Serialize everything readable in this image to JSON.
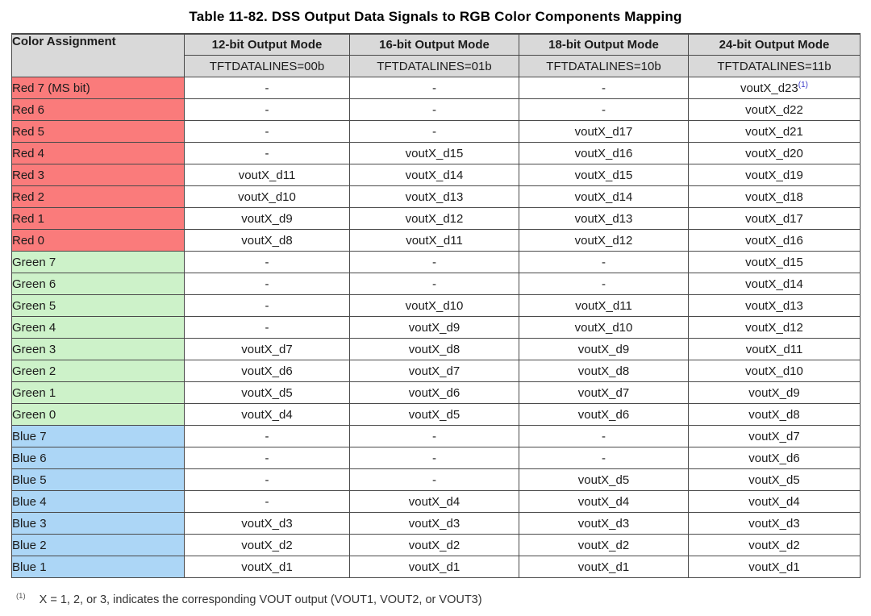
{
  "page": {
    "title": "Table 11-82. DSS Output Data Signals to RGB Color Components Mapping"
  },
  "table": {
    "header": {
      "color_assignment": "Color Assignment",
      "modes": [
        "12-bit Output Mode",
        "16-bit Output Mode",
        "18-bit Output Mode",
        "24-bit Output Mode"
      ],
      "subheaders": [
        "TFTDATALINES=00b",
        "TFTDATALINES=01b",
        "TFTDATALINES=10b",
        "TFTDATALINES=11b"
      ]
    },
    "rows": [
      {
        "color": "Red 7 (MS bit)",
        "group": "red",
        "values": [
          "-",
          "-",
          "-",
          "voutX_d23"
        ],
        "footnote_ref": "(1)"
      },
      {
        "color": "Red 6",
        "group": "red",
        "values": [
          "-",
          "-",
          "-",
          "voutX_d22"
        ]
      },
      {
        "color": "Red 5",
        "group": "red",
        "values": [
          "-",
          "-",
          "voutX_d17",
          "voutX_d21"
        ]
      },
      {
        "color": "Red 4",
        "group": "red",
        "values": [
          "-",
          "voutX_d15",
          "voutX_d16",
          "voutX_d20"
        ]
      },
      {
        "color": "Red 3",
        "group": "red",
        "values": [
          "voutX_d11",
          "voutX_d14",
          "voutX_d15",
          "voutX_d19"
        ]
      },
      {
        "color": "Red 2",
        "group": "red",
        "values": [
          "voutX_d10",
          "voutX_d13",
          "voutX_d14",
          "voutX_d18"
        ]
      },
      {
        "color": "Red 1",
        "group": "red",
        "values": [
          "voutX_d9",
          "voutX_d12",
          "voutX_d13",
          "voutX_d17"
        ]
      },
      {
        "color": "Red 0",
        "group": "red",
        "values": [
          "voutX_d8",
          "voutX_d11",
          "voutX_d12",
          "voutX_d16"
        ]
      },
      {
        "color": "Green 7",
        "group": "green",
        "values": [
          "-",
          "-",
          "-",
          "voutX_d15"
        ]
      },
      {
        "color": "Green 6",
        "group": "green",
        "values": [
          "-",
          "-",
          "-",
          "voutX_d14"
        ]
      },
      {
        "color": "Green 5",
        "group": "green",
        "values": [
          "-",
          "voutX_d10",
          "voutX_d11",
          "voutX_d13"
        ]
      },
      {
        "color": "Green 4",
        "group": "green",
        "values": [
          "-",
          "voutX_d9",
          "voutX_d10",
          "voutX_d12"
        ]
      },
      {
        "color": "Green 3",
        "group": "green",
        "values": [
          "voutX_d7",
          "voutX_d8",
          "voutX_d9",
          "voutX_d11"
        ]
      },
      {
        "color": "Green 2",
        "group": "green",
        "values": [
          "voutX_d6",
          "voutX_d7",
          "voutX_d8",
          "voutX_d10"
        ]
      },
      {
        "color": "Green 1",
        "group": "green",
        "values": [
          "voutX_d5",
          "voutX_d6",
          "voutX_d7",
          "voutX_d9"
        ]
      },
      {
        "color": "Green 0",
        "group": "green",
        "values": [
          "voutX_d4",
          "voutX_d5",
          "voutX_d6",
          "voutX_d8"
        ]
      },
      {
        "color": "Blue 7",
        "group": "blue",
        "values": [
          "-",
          "-",
          "-",
          "voutX_d7"
        ]
      },
      {
        "color": "Blue 6",
        "group": "blue",
        "values": [
          "-",
          "-",
          "-",
          "voutX_d6"
        ]
      },
      {
        "color": "Blue 5",
        "group": "blue",
        "values": [
          "-",
          "-",
          "voutX_d5",
          "voutX_d5"
        ]
      },
      {
        "color": "Blue 4",
        "group": "blue",
        "values": [
          "-",
          "voutX_d4",
          "voutX_d4",
          "voutX_d4"
        ]
      },
      {
        "color": "Blue 3",
        "group": "blue",
        "values": [
          "voutX_d3",
          "voutX_d3",
          "voutX_d3",
          "voutX_d3"
        ]
      },
      {
        "color": "Blue 2",
        "group": "blue",
        "values": [
          "voutX_d2",
          "voutX_d2",
          "voutX_d2",
          "voutX_d2"
        ]
      },
      {
        "color": "Blue 1",
        "group": "blue",
        "values": [
          "voutX_d1",
          "voutX_d1",
          "voutX_d1",
          "voutX_d1"
        ]
      }
    ]
  },
  "footnote": {
    "marker": "(1)",
    "text": "X = 1, 2, or 3, indicates the corresponding VOUT output (VOUT1, VOUT2, or VOUT3)"
  },
  "colors": {
    "header_bg": "#d9d9d9",
    "red_row": "#fa7b7b",
    "green_row": "#cdf2c9",
    "blue_row": "#acd6f6",
    "border": "#4a4a4a",
    "footnote_ref": "#3a3ac8"
  }
}
